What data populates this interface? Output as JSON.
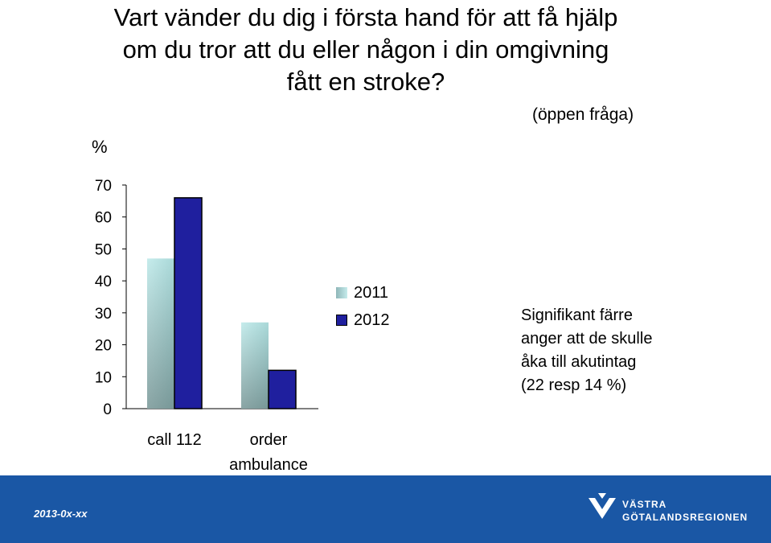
{
  "title_lines": [
    "Vart vänder du dig i första hand för att få hjälp",
    "om du tror att du eller någon i din omgivning",
    "fått en stroke?"
  ],
  "question_note": "(öppen fråga)",
  "footer": {
    "date": "2013-0x-xx",
    "logo_lines": [
      "VÄSTRA",
      "GÖTALANDSREGIONEN"
    ]
  },
  "note_lines": [
    "Signifikant färre",
    "anger att de skulle",
    "åka till akutintag",
    "(22 resp 14 %)"
  ],
  "colors": {
    "series_2011": "#b2e0e0",
    "series_2012": "#1f1f9e",
    "footer": "#1a57a5"
  },
  "chart_data": {
    "type": "bar",
    "ylabel": "%",
    "ylim": [
      0,
      70
    ],
    "yticks": [
      0,
      10,
      20,
      30,
      40,
      50,
      60,
      70
    ],
    "categories": [
      "call 112",
      "order ambulance"
    ],
    "series": [
      {
        "name": "2011",
        "values": [
          47,
          27
        ]
      },
      {
        "name": "2012",
        "values": [
          66,
          12
        ]
      }
    ],
    "legend_position": "center"
  }
}
